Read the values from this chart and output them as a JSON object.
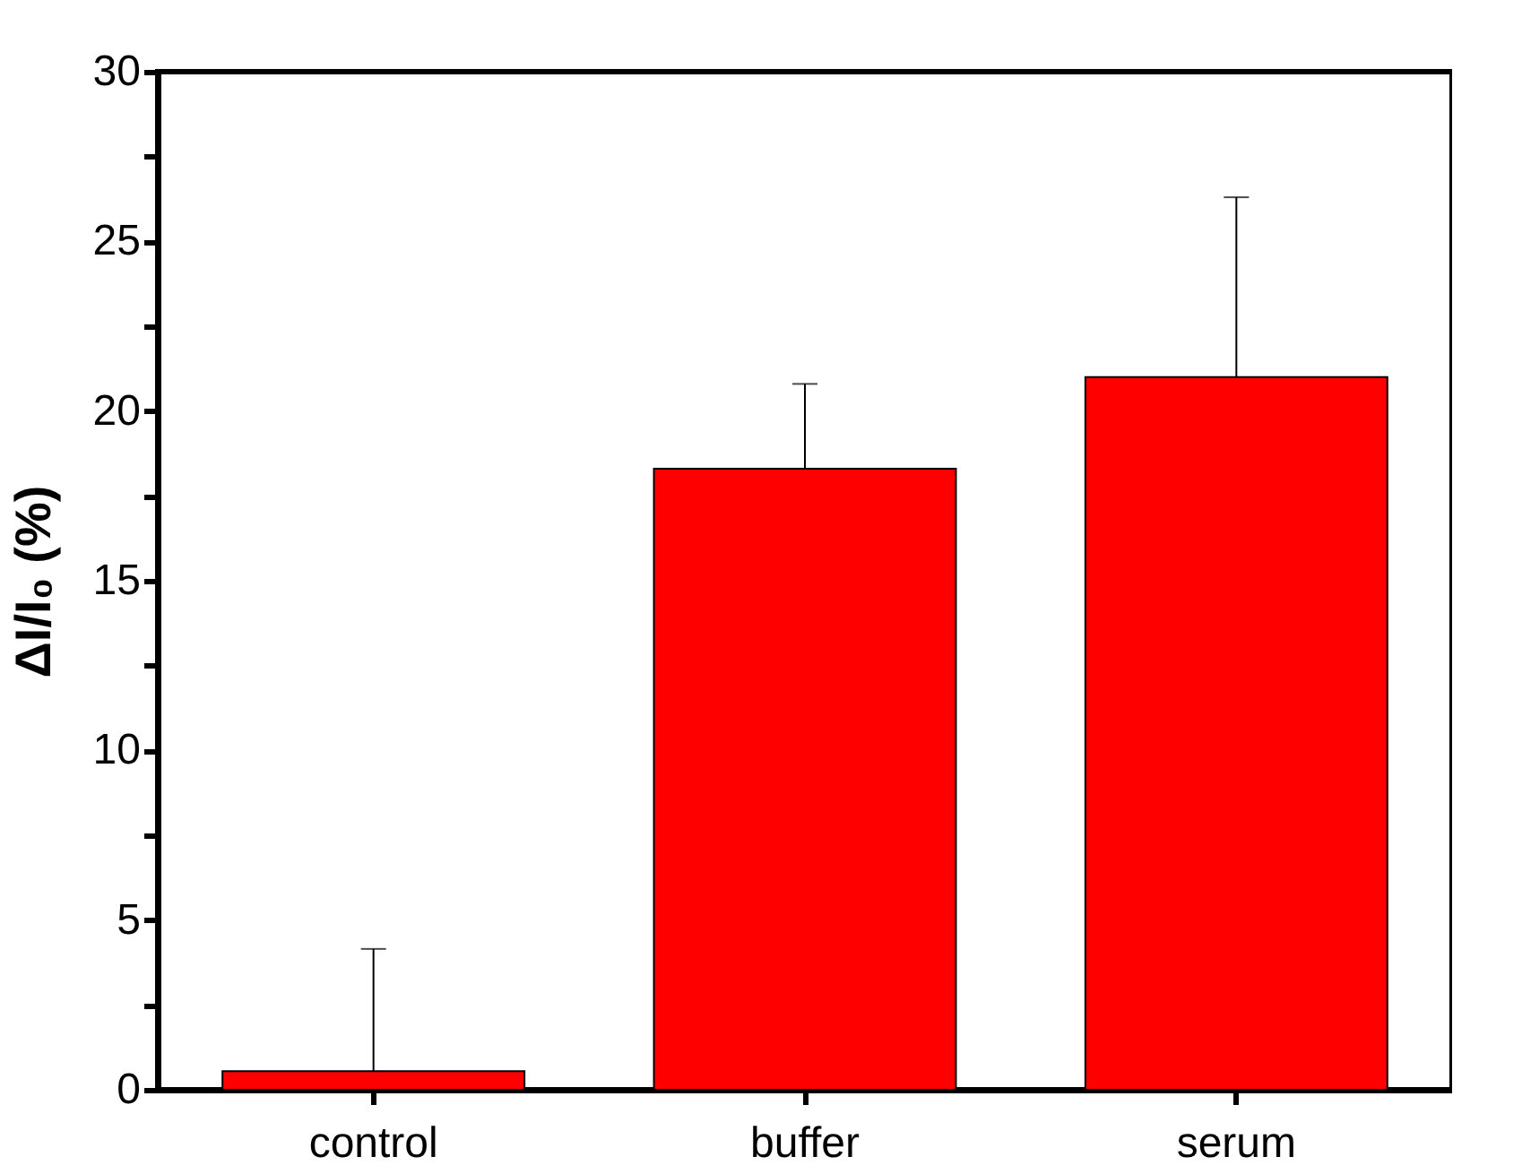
{
  "chart_data": {
    "type": "bar",
    "ylabel": "ΔI/I₀ (%)",
    "categories": [
      "control",
      "buffer",
      "serum"
    ],
    "values": [
      0.55,
      18.3,
      21.0
    ],
    "errors": [
      [
        0.55,
        4.15
      ],
      [
        18.3,
        20.8
      ],
      [
        21.0,
        26.3
      ]
    ],
    "color": "#ff0000",
    "ylim": [
      0,
      30
    ],
    "yticks": [
      0,
      {
        "value": 2.5,
        "label": null
      },
      5,
      {
        "value": 7.5,
        "label": null
      },
      10,
      {
        "value": 12.5,
        "label": null
      },
      15,
      {
        "value": 17.5,
        "label": null
      },
      20,
      {
        "value": 22.5,
        "label": null
      },
      25,
      {
        "value": 27.5,
        "label": null
      },
      30
    ],
    "grid": false
  }
}
